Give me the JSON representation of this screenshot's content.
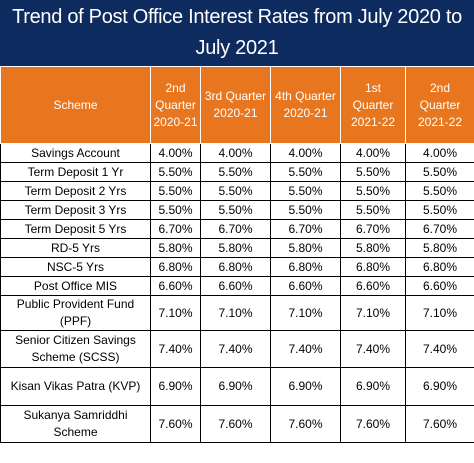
{
  "title": "Trend of Post Office Interest Rates from July 2020 to July 2021",
  "header": {
    "scheme": "Scheme",
    "quarters": [
      "2nd Quarter 2020-21",
      "3rd Quarter 2020-21",
      "4th Quarter 2020-21",
      "1st Quarter 2021-22",
      "2nd Quarter 2021-22"
    ]
  },
  "rows": [
    {
      "scheme": "Savings Account",
      "rates": [
        "4.00%",
        "4.00%",
        "4.00%",
        "4.00%",
        "4.00%"
      ]
    },
    {
      "scheme": "Term Deposit 1 Yr",
      "rates": [
        "5.50%",
        "5.50%",
        "5.50%",
        "5.50%",
        "5.50%"
      ]
    },
    {
      "scheme": "Term Deposit 2 Yrs",
      "rates": [
        "5.50%",
        "5.50%",
        "5.50%",
        "5.50%",
        "5.50%"
      ]
    },
    {
      "scheme": "Term Deposit 3 Yrs",
      "rates": [
        "5.50%",
        "5.50%",
        "5.50%",
        "5.50%",
        "5.50%"
      ]
    },
    {
      "scheme": "Term Deposit 5 Yrs",
      "rates": [
        "6.70%",
        "6.70%",
        "6.70%",
        "6.70%",
        "6.70%"
      ]
    },
    {
      "scheme": "RD-5 Yrs",
      "rates": [
        "5.80%",
        "5.80%",
        "5.80%",
        "5.80%",
        "5.80%"
      ]
    },
    {
      "scheme": "NSC-5 Yrs",
      "rates": [
        "6.80%",
        "6.80%",
        "6.80%",
        "6.80%",
        "6.80%"
      ]
    },
    {
      "scheme": "Post Office MIS",
      "rates": [
        "6.60%",
        "6.60%",
        "6.60%",
        "6.60%",
        "6.60%"
      ]
    },
    {
      "scheme": "Public Provident Fund (PPF)",
      "rates": [
        "7.10%",
        "7.10%",
        "7.10%",
        "7.10%",
        "7.10%"
      ]
    },
    {
      "scheme": "Senior Citizen Savings Scheme (SCSS)",
      "rates": [
        "7.40%",
        "7.40%",
        "7.40%",
        "7.40%",
        "7.40%"
      ]
    },
    {
      "scheme": "Kisan Vikas Patra (KVP)",
      "rates": [
        "6.90%",
        "6.90%",
        "6.90%",
        "6.90%",
        "6.90%"
      ]
    },
    {
      "scheme": "Sukanya Samriddhi Scheme",
      "rates": [
        "7.60%",
        "7.60%",
        "7.60%",
        "7.60%",
        "7.60%"
      ]
    }
  ],
  "colors": {
    "title_bg": "#0d2b5f",
    "header_bg": "#e8761e",
    "header_text": "#ffffff",
    "border": "#000000"
  }
}
